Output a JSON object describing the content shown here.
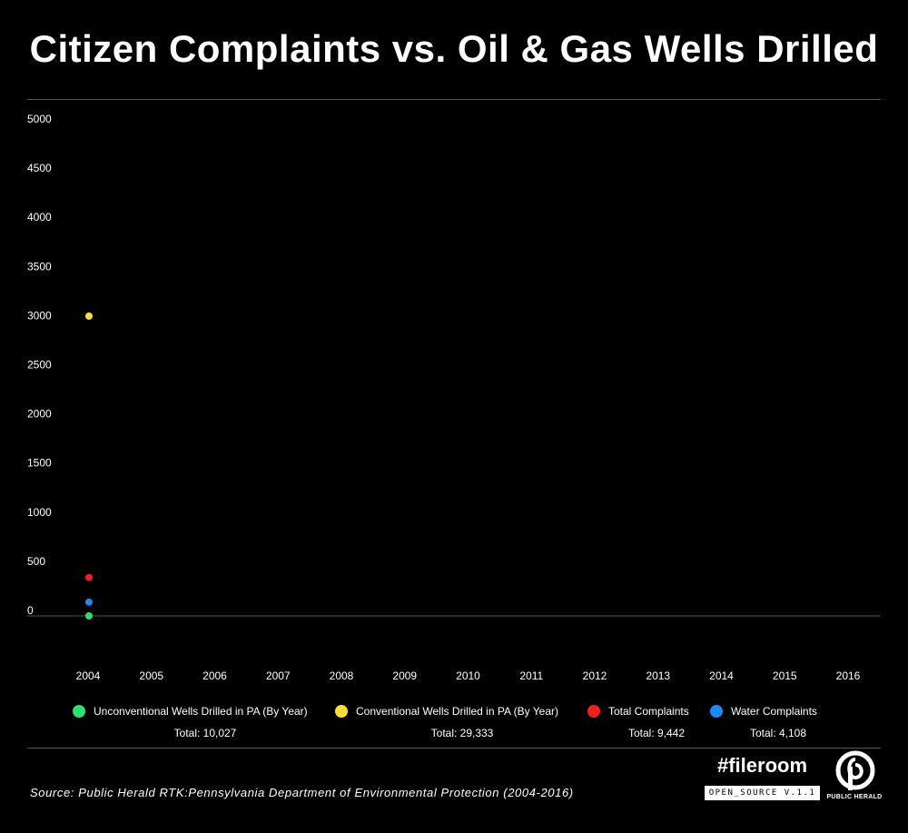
{
  "header": {
    "title": "Citizen Complaints vs. Oil & Gas Wells Drilled"
  },
  "chart_data": {
    "type": "scatter",
    "x": [
      "2004",
      "2005",
      "2006",
      "2007",
      "2008",
      "2009",
      "2010",
      "2011",
      "2012",
      "2013",
      "2014",
      "2015",
      "2016"
    ],
    "y_ticks": [
      "5000",
      "4500",
      "4000",
      "3500",
      "3000",
      "2500",
      "2000",
      "1500",
      "1000",
      "500",
      "0"
    ],
    "ylim": [
      0,
      5000
    ],
    "grid": false,
    "legend_position": "bottom",
    "series": [
      {
        "name": "Unconventional Wells Drilled in PA (By Year)",
        "total": "Total: 10,027",
        "color": "#2ee06a",
        "values": [
          {
            "x": "2004",
            "y": 0
          }
        ]
      },
      {
        "name": "Conventional Wells Drilled in PA (By Year)",
        "total": "Total: 29,333",
        "color": "#ffdd33",
        "values": [
          {
            "x": "2004",
            "y": 3050
          }
        ]
      },
      {
        "name": "Total Complaints",
        "total": "Total: 9,442",
        "color": "#f02020",
        "values": [
          {
            "x": "2004",
            "y": 390
          }
        ]
      },
      {
        "name": "Water Complaints",
        "total": "Total: 4,108",
        "color": "#1e88f5",
        "values": [
          {
            "x": "2004",
            "y": 140
          }
        ]
      }
    ]
  },
  "footer": {
    "source": "Source: Public Herald RTK:Pennsylvania Department of Environmental Protection (2004-2016)",
    "hashtag": "#fileroom",
    "version": "OPEN_SOURCE V.1.1",
    "logo_text": "PUBLIC HERALD"
  }
}
